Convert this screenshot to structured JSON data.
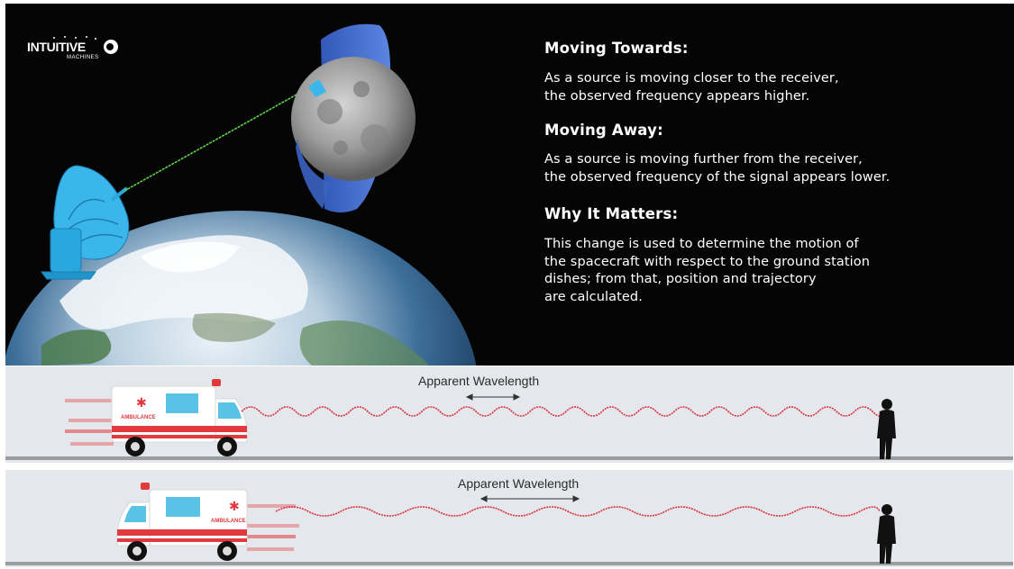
{
  "logo": {
    "text": "INTUITIVE",
    "subtext": "MACHINES"
  },
  "sections": [
    {
      "heading": "Moving Towards:",
      "lines": [
        "As a source is moving closer to the receiver,",
        "the observed frequency appears higher."
      ]
    },
    {
      "heading": "Moving Away:",
      "lines": [
        "As a source is moving further from the receiver,",
        "the observed frequency of the signal appears lower."
      ]
    },
    {
      "heading": "Why It Matters:",
      "lines": [
        "This change is used to determine the motion of",
        "the spacecraft with respect to the ground station",
        "dishes; from that, position and trajectory",
        "are calculated."
      ]
    }
  ],
  "panels": [
    {
      "wavelength_label": "Apparent Wavelength",
      "vehicle_label": "AMBULANCE",
      "direction": "toward receiver",
      "relative_wavelength": "shorter"
    },
    {
      "wavelength_label": "Apparent Wavelength",
      "vehicle_label": "AMBULANCE",
      "direction": "away from receiver",
      "relative_wavelength": "longer"
    }
  ],
  "colors": {
    "background": "#050505",
    "wave": "#d9323e",
    "dish": "#29a8e0",
    "ambulance_stripe": "#e03a3e",
    "panel": "#e4e7eb"
  }
}
